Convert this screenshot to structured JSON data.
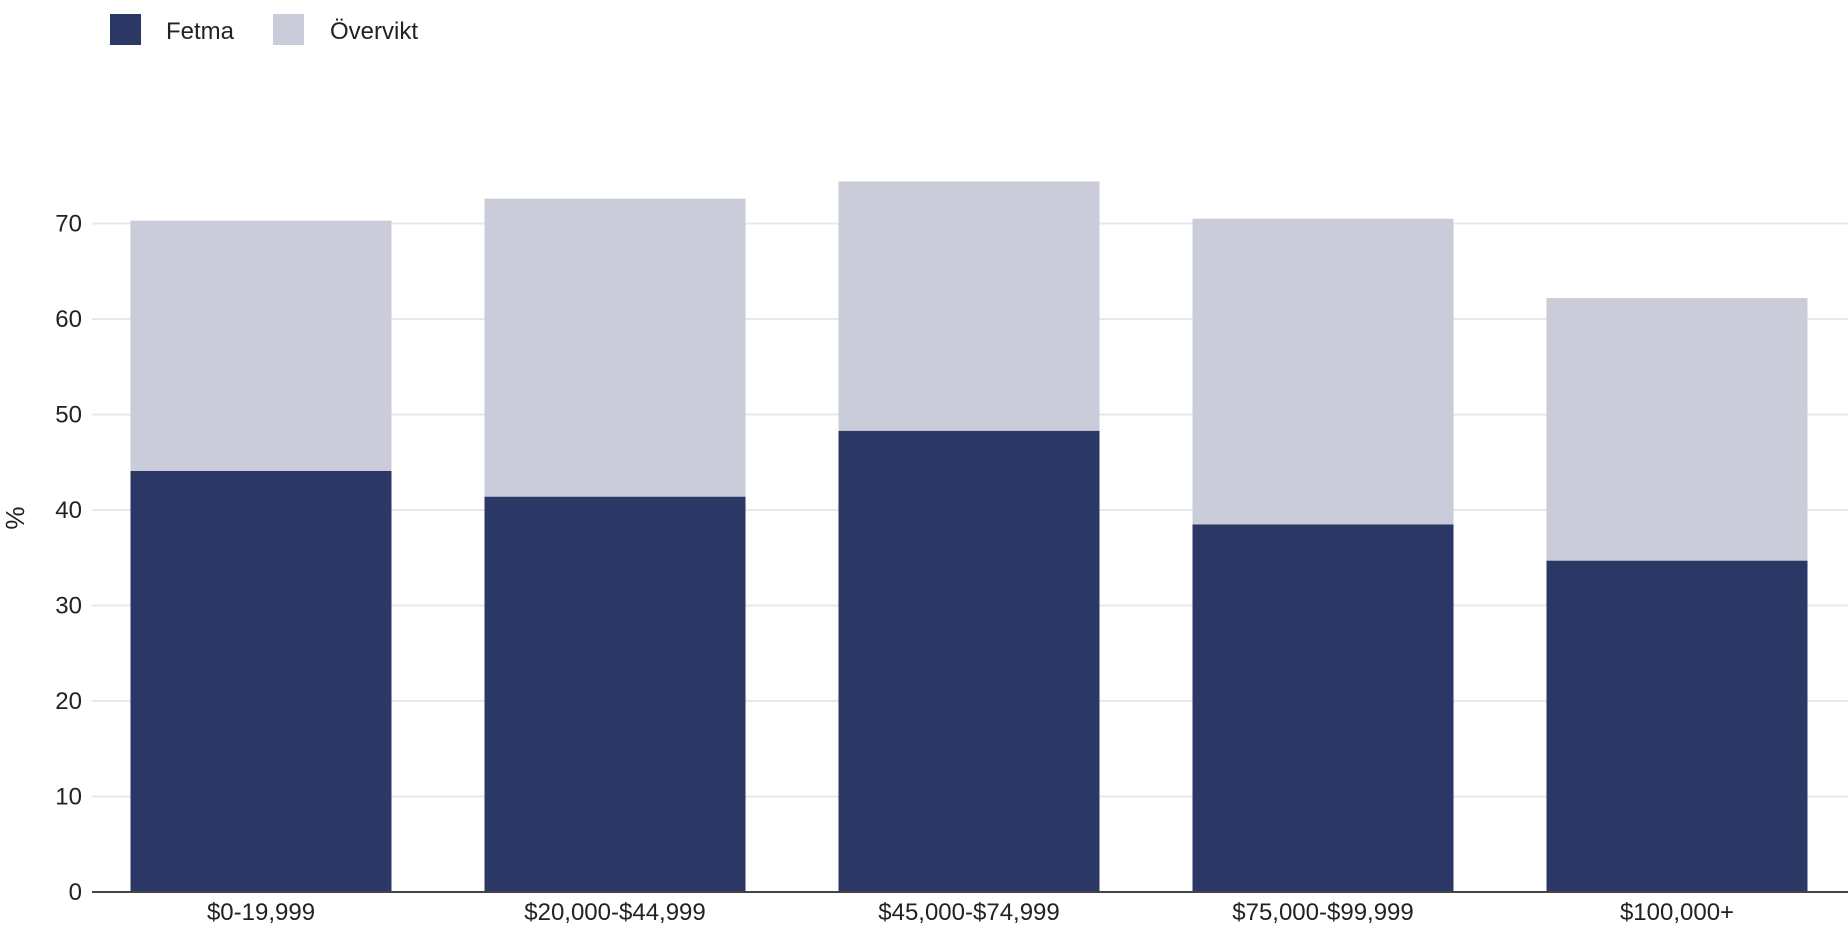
{
  "chart_data": {
    "type": "bar",
    "stacked": true,
    "categories": [
      "$0-19,999",
      "$20,000-$44,999",
      "$45,000-$74,999",
      "$75,000-$99,999",
      "$100,000+"
    ],
    "series": [
      {
        "name": "Fetma",
        "values": [
          44.1,
          41.4,
          48.3,
          38.5,
          34.7
        ],
        "color": "#2b3764"
      },
      {
        "name": "Övervikt",
        "values": [
          26.2,
          31.2,
          26.1,
          32.0,
          27.5
        ],
        "color": "#cacdd9"
      }
    ],
    "ylabel": "%",
    "xlabel": "",
    "ylim": [
      0,
      80
    ],
    "yticks": [
      0,
      10,
      20,
      30,
      40,
      50,
      60,
      70
    ],
    "grid": true,
    "legend_position": "top-left"
  }
}
